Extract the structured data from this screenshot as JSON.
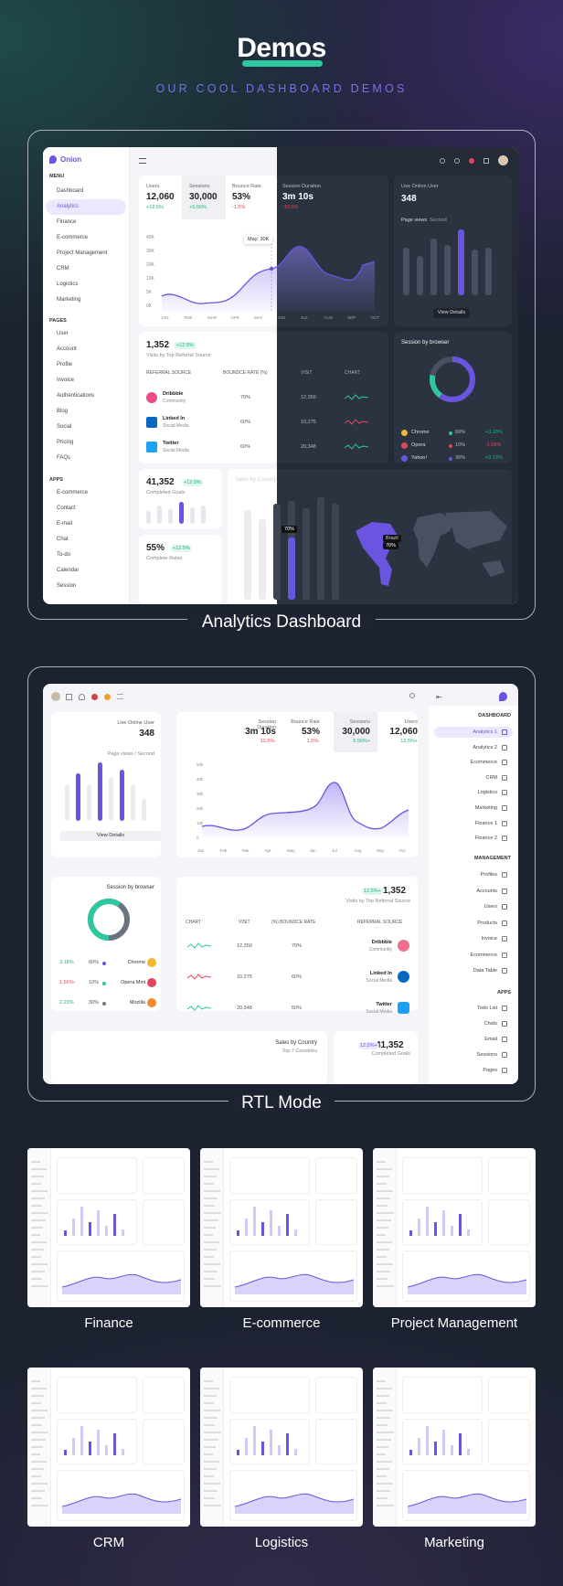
{
  "header": {
    "title": "Demos",
    "subtitle": "OUR COOL DASHBOARD DEMOS"
  },
  "analytics": {
    "caption": "Analytics Dashboard",
    "brand": "Onion",
    "menu_heading": "MENU",
    "menu": [
      "Dashboard",
      "Analytics",
      "Finance",
      "E-commerce",
      "Project Management",
      "CRM",
      "Logistics",
      "Marketing"
    ],
    "pages_heading": "PAGES",
    "pages": [
      "User",
      "Account",
      "Profile",
      "Invoice",
      "Authentications",
      "Blog",
      "Social",
      "Pricing",
      "FAQs"
    ],
    "apps_heading": "APPS",
    "apps": [
      "E-commerce",
      "Contact",
      "E-mail",
      "Chat",
      "To-do",
      "Calendar",
      "Session"
    ],
    "stats": [
      {
        "label": "Users",
        "value": "12,060",
        "delta": "+12.5%",
        "dir": "up"
      },
      {
        "label": "Sessions",
        "value": "30,000",
        "delta": "+5.56%",
        "dir": "up"
      },
      {
        "label": "Bounce Rate",
        "value": "53%",
        "delta": "-1.5%",
        "dir": "down"
      },
      {
        "label": "Session Duration",
        "value": "3m 10s",
        "delta": "-10.5%",
        "dir": "down"
      }
    ],
    "chart": {
      "tooltip": "May: 30K",
      "yticks": [
        "40K",
        "30K",
        "20K",
        "10K",
        "5K",
        "0K"
      ],
      "months": [
        "JAN",
        "FEB",
        "MAR",
        "APR",
        "MAY",
        "JUN",
        "JUL",
        "AUG",
        "SEP",
        "OCT"
      ]
    },
    "live": {
      "label": "Live Online User",
      "value": "348",
      "sub": "Page views",
      "sub2": "Second",
      "button": "View Details"
    },
    "referral": {
      "value": "1,352",
      "badge": "+12.5%",
      "label": "Visits by Top Referral Source",
      "headers": [
        "REFERRAL SOURCE",
        "BOUNDCE RATE (%)",
        "VISIT",
        "CHART"
      ],
      "rows": [
        {
          "name": "Dribbble",
          "sub": "Community",
          "rate": "70%",
          "visit": "12,350"
        },
        {
          "name": "Linked In",
          "sub": "Social Media",
          "rate": "60%",
          "visit": "10,275"
        },
        {
          "name": "Twitter",
          "sub": "Social Media",
          "rate": "60%",
          "visit": "20,348"
        }
      ]
    },
    "browser": {
      "title": "Session by browser",
      "rows": [
        {
          "name": "Chrome",
          "pct": "60%",
          "delta": "+3.18%"
        },
        {
          "name": "Opera",
          "pct": "10%",
          "delta": "-1.56%"
        },
        {
          "name": "Yahoo!",
          "pct": "30%",
          "delta": "+3.23%"
        }
      ]
    },
    "goals": {
      "value": "41,352",
      "badge": "+12.5%",
      "label": "Completed Goals"
    },
    "rates": {
      "value": "55%",
      "badge": "+12.5%",
      "label": "Complete Rates"
    },
    "country": {
      "title": "Sales by Country",
      "bar_label": "70%",
      "map_label": "Brazil",
      "map_value": "70%"
    }
  },
  "rtl": {
    "caption": "RTL Mode",
    "live": {
      "label": "Live Online User",
      "value": "348",
      "sub": "Page views / Second",
      "button": "View Details"
    },
    "stats": [
      {
        "label": "Session Duration",
        "value": "3m 10s",
        "delta": "10.5%-"
      },
      {
        "label": "Bounce Rate",
        "value": "53%",
        "delta": "1.5%-"
      },
      {
        "label": "Sessions",
        "value": "30,000",
        "delta": "5.56%+"
      },
      {
        "label": "Users",
        "value": "12,060",
        "delta": "12.5%+"
      }
    ],
    "chart": {
      "yticks": [
        "50k",
        "40k",
        "30k",
        "20k",
        "10k",
        "0"
      ],
      "months": [
        "Jan",
        "Feb",
        "Mar",
        "Apr",
        "May",
        "Jun",
        "Jul",
        "Aug",
        "Sep",
        "Oct"
      ]
    },
    "browser": {
      "title": "Session by browser",
      "rows": [
        {
          "delta": "3.18%",
          "pct": "60%",
          "name": "Chrome"
        },
        {
          "delta": "1.56%-",
          "pct": "10%",
          "name": "Opera Mini"
        },
        {
          "delta": "2.23%",
          "pct": "30%",
          "name": "Mozilla"
        }
      ]
    },
    "referral": {
      "badge": "12.5%+",
      "value": "1,352",
      "label": "Visits by Top Referral Source",
      "headers": [
        "CHART",
        "VISIT",
        "(%) BOUNDCE RATE",
        "REFERRAL SOURCE"
      ],
      "rows": [
        {
          "visit": "12,350",
          "rate": "70%",
          "name": "Dribbble",
          "sub": "Community"
        },
        {
          "visit": "10,275",
          "rate": "60%",
          "name": "Linked In",
          "sub": "Social Media"
        },
        {
          "visit": "20,348",
          "rate": "50%",
          "name": "Twitter",
          "sub": "Social Media"
        }
      ]
    },
    "country": {
      "title": "Sales by Country",
      "sub": "Top 7 Countries"
    },
    "goals": {
      "badge": "12.5%+",
      "value": "41,352",
      "label": "Completed Goals"
    },
    "side": {
      "dashboard": "DASHBOARD",
      "items": [
        "Analytics 1",
        "Analytics 2",
        "Ecommerce",
        "CRM",
        "Logistics",
        "Marketing",
        "Finance 1",
        "Finance 2"
      ],
      "management": "MANAGEMENT",
      "mitems": [
        "Profiles",
        "Accounts",
        "Users",
        "Products",
        "Invoice",
        "Ecommerce",
        "Data Table"
      ],
      "apps": "APPS",
      "aitems": [
        "Todo List",
        "Chats",
        "Email",
        "Sessions",
        "Pages"
      ]
    }
  },
  "thumbnails": [
    {
      "label": "Finance"
    },
    {
      "label": "E-commerce"
    },
    {
      "label": "Project Management"
    },
    {
      "label": "CRM"
    },
    {
      "label": "Logistics"
    },
    {
      "label": "Marketing"
    }
  ]
}
